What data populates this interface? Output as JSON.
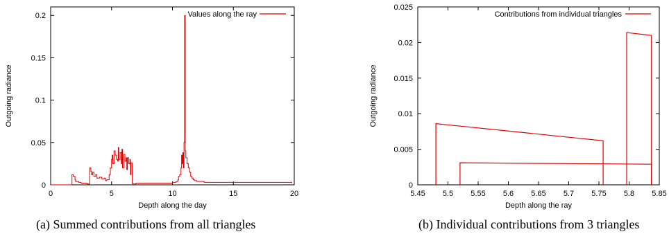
{
  "chart_data": [
    {
      "type": "line",
      "caption": "(a) Summed contributions from all triangles",
      "xlabel": "Depth along the day",
      "ylabel": "Outgoing radiance",
      "xlim": [
        0,
        20
      ],
      "ylim": [
        0,
        0.21
      ],
      "xticks": [
        0,
        5,
        10,
        15,
        20
      ],
      "yticks": [
        0,
        0.05,
        0.1,
        0.15,
        0.2
      ],
      "xtick_labels": [
        "0",
        "5",
        "10",
        "15",
        "20"
      ],
      "ytick_labels": [
        "0",
        "0.05",
        "0.1",
        "0.15",
        "0.2"
      ],
      "legend_position": "top-right",
      "series": [
        {
          "name": "Values along the ray",
          "color": "#e00000",
          "x": [
            0,
            1.7,
            1.75,
            1.85,
            2.0,
            2.05,
            2.3,
            2.5,
            2.7,
            3.0,
            3.2,
            3.3,
            3.35,
            3.45,
            3.55,
            3.7,
            3.8,
            4.0,
            4.2,
            4.4,
            4.5,
            4.6,
            4.8,
            4.9,
            5.0,
            5.05,
            5.1,
            5.2,
            5.3,
            5.4,
            5.5,
            5.55,
            5.6,
            5.7,
            5.8,
            5.85,
            5.9,
            6.0,
            6.1,
            6.2,
            6.25,
            6.3,
            6.4,
            6.5,
            6.55,
            6.6,
            6.7,
            6.75,
            7.0,
            8.0,
            9.0,
            10.0,
            10.3,
            10.45,
            10.5,
            10.6,
            10.7,
            10.75,
            10.8,
            10.85,
            10.9,
            10.95,
            11.0,
            11.05,
            11.1,
            11.2,
            11.3,
            11.4,
            11.5,
            11.6,
            11.7,
            11.8,
            12.0,
            12.3,
            12.6,
            13.0,
            14.0,
            15.0,
            16.0,
            17.0,
            18.0,
            19.0,
            19.8
          ],
          "y": [
            0,
            0,
            0.012,
            0.01,
            0.006,
            0.004,
            0.003,
            0.002,
            0.002,
            0.001,
            0.02,
            0.016,
            0.012,
            0.015,
            0.01,
            0.012,
            0.008,
            0.009,
            0.007,
            0.008,
            0.005,
            0.006,
            0.012,
            0.02,
            0.03,
            0.035,
            0.025,
            0.04,
            0.035,
            0.03,
            0.028,
            0.044,
            0.03,
            0.038,
            0.025,
            0.042,
            0.02,
            0.036,
            0.028,
            0.032,
            0.018,
            0.032,
            0.025,
            0.03,
            0.012,
            0.026,
            0.002,
            0.001,
            0.002,
            0.002,
            0.002,
            0.003,
            0.004,
            0.006,
            0.01,
            0.012,
            0.02,
            0.035,
            0.025,
            0.038,
            0.02,
            0.05,
            0.2,
            0.04,
            0.032,
            0.025,
            0.02,
            0.015,
            0.01,
            0.008,
            0.006,
            0.005,
            0.004,
            0.004,
            0.003,
            0.003,
            0.003,
            0.003,
            0.003,
            0.003,
            0.003,
            0.003,
            0.002
          ]
        }
      ]
    },
    {
      "type": "line",
      "caption": "(b) Individual contributions from 3 triangles",
      "xlabel": "Depth along the ray",
      "ylabel": "Outgoing radiance",
      "xlim": [
        5.45,
        5.85
      ],
      "ylim": [
        0,
        0.025
      ],
      "xticks": [
        5.45,
        5.5,
        5.55,
        5.6,
        5.65,
        5.7,
        5.75,
        5.8,
        5.85
      ],
      "yticks": [
        0,
        0.005,
        0.01,
        0.015,
        0.02,
        0.025
      ],
      "xtick_labels": [
        "5.45",
        "5.5",
        "5.55",
        "5.6",
        "5.65",
        "5.7",
        "5.75",
        "5.8",
        "5.85"
      ],
      "ytick_labels": [
        "0",
        "0.005",
        "0.01",
        "0.015",
        "0.02",
        "0.025"
      ],
      "legend_position": "top-right",
      "series": [
        {
          "name": "Contributions from individual triangles",
          "color": "#e00000",
          "segments": [
            {
              "x": [
                5.48,
                5.48,
                5.757,
                5.757
              ],
              "y": [
                0,
                0.0086,
                0.0062,
                0
              ]
            },
            {
              "x": [
                5.52,
                5.52,
                5.837,
                5.837
              ],
              "y": [
                0,
                0.0031,
                0.0029,
                0
              ]
            },
            {
              "x": [
                5.796,
                5.796,
                5.837,
                5.837
              ],
              "y": [
                0,
                0.0214,
                0.021,
                0
              ]
            }
          ]
        }
      ]
    }
  ]
}
